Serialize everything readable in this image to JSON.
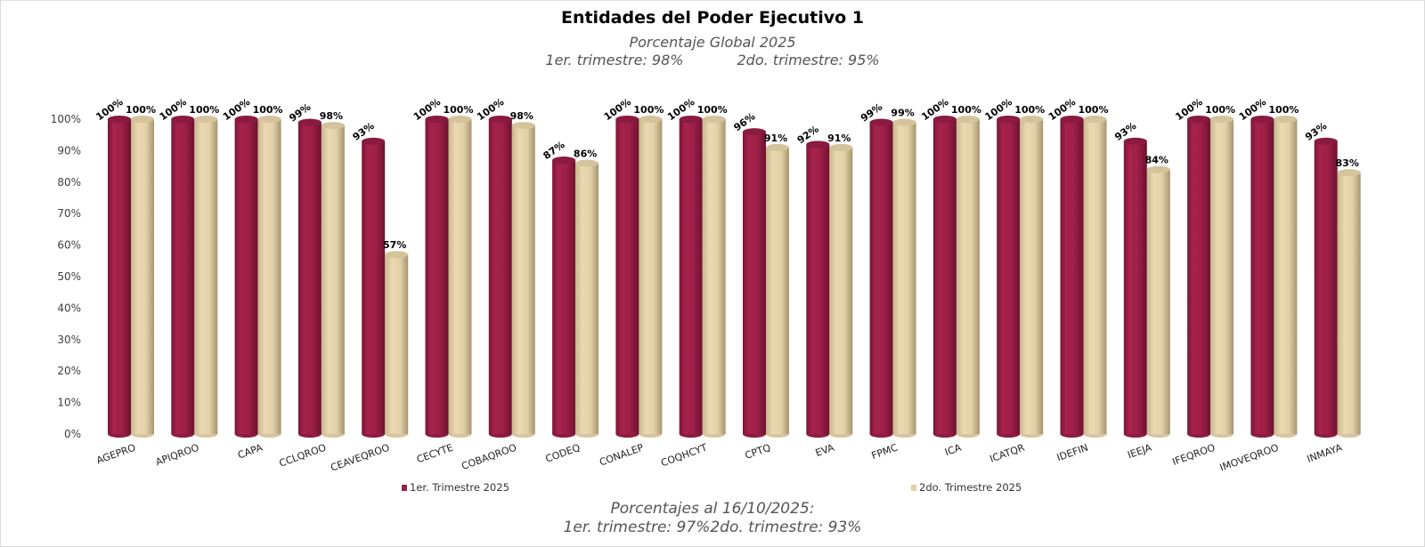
{
  "chart_data": {
    "type": "bar",
    "title": "Entidades del Poder Ejecutivo 1",
    "subtitle_line1": "Porcentaje Global  2025",
    "subtitle_q1": "1er. trimestre: 98%",
    "subtitle_q2": "2do. trimestre: 95%",
    "footer_line1": "Porcentajes al 16/10/2025:",
    "footer_q1": "1er. trimestre: 97%",
    "footer_q2": "2do. trimestre: 93%",
    "xlabel": "",
    "ylabel": "",
    "ylim": [
      0,
      100
    ],
    "y_ticks": [
      "0%",
      "10%",
      "20%",
      "30%",
      "40%",
      "50%",
      "60%",
      "70%",
      "80%",
      "90%",
      "100%"
    ],
    "grid": false,
    "legend_position": "bottom",
    "categories": [
      "AGEPRO",
      "APIQROO",
      "CAPA",
      "CCLQROO",
      "CEAVEQROO",
      "CECYTE",
      "COBAQROO",
      "CODEQ",
      "CONALEP",
      "COQHCYT",
      "CPTQ",
      "EVA",
      "FPMC",
      "ICA",
      "ICATQR",
      "IDEFIN",
      "IEEJA",
      "IFEQROO",
      "IMOVEQROO",
      "INMAYA"
    ],
    "series": [
      {
        "name": "1er. Trimestre 2025",
        "color": "#9b1e47",
        "values": [
          100,
          100,
          100,
          99,
          93,
          100,
          100,
          87,
          100,
          100,
          96,
          92,
          99,
          100,
          100,
          100,
          93,
          100,
          100,
          93
        ],
        "labels": [
          "100%",
          "100%",
          "100%",
          "99%",
          "93%",
          "100%",
          "100%",
          "87%",
          "100%",
          "100%",
          "96%",
          "92%",
          "99%",
          "100%",
          "100%",
          "100%",
          "93%",
          "100%",
          "100%",
          "93%"
        ]
      },
      {
        "name": "2do. Trimestre 2025",
        "color": "#e2d0a8",
        "values": [
          100,
          100,
          100,
          98,
          57,
          100,
          98,
          86,
          100,
          100,
          91,
          91,
          99,
          100,
          100,
          100,
          84,
          100,
          100,
          83
        ],
        "labels": [
          "100%",
          "100%",
          "100%",
          "98%",
          "57%",
          "100%",
          "98%",
          "86%",
          "100%",
          "100%",
          "91%",
          "91%",
          "99%",
          "100%",
          "100%",
          "100%",
          "84%",
          "100%",
          "100%",
          "83%"
        ]
      }
    ]
  }
}
